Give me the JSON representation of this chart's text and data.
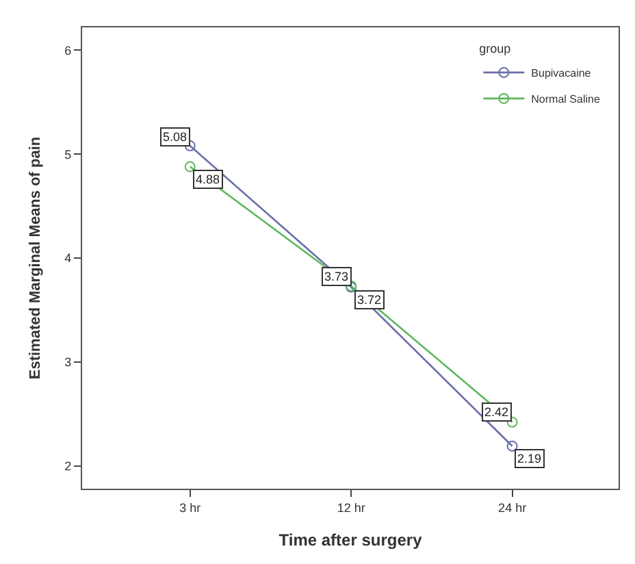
{
  "chart_data": {
    "type": "line",
    "xlabel": "Time after surgery",
    "ylabel": "Estimated Marginal Means of pain",
    "legend_title": "group",
    "categories": [
      "3 hr",
      "12 hr",
      "24 hr"
    ],
    "series": [
      {
        "name": "Bupivacaine",
        "color": "#6a6ea8",
        "values": [
          5.08,
          3.72,
          2.19
        ]
      },
      {
        "name": "Normal Saline",
        "color": "#5cb85c",
        "values": [
          4.88,
          3.73,
          2.42
        ]
      }
    ],
    "ylim": [
      1.78,
      6.22
    ],
    "yticks": [
      2,
      3,
      4,
      5,
      6
    ],
    "data_labels": true,
    "marker": "circle",
    "legend": "top right"
  }
}
